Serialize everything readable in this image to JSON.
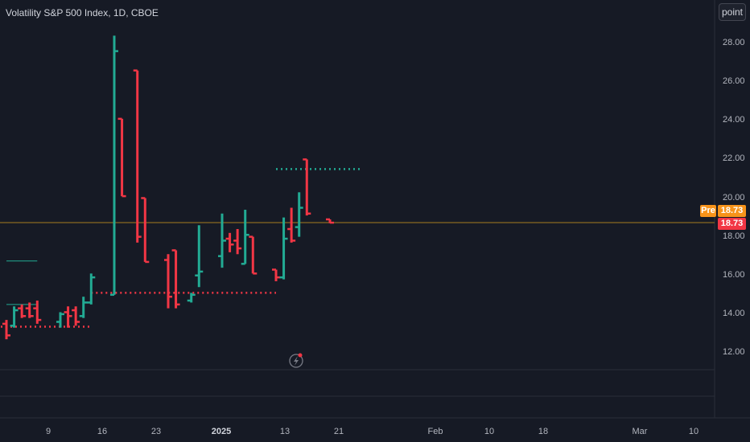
{
  "header": {
    "title": "Volatility S&P 500 Index, 1D, CBOE",
    "point_button": "point"
  },
  "price_tags": {
    "pre_label": "Pre",
    "pre_value": "18.73",
    "last_value": "18.73"
  },
  "colors": {
    "background": "#161a25",
    "up": "#22ab94",
    "down": "#f23645",
    "pre_tag": "#f7931a",
    "last_line": "#a67c1f"
  },
  "chart_data": {
    "type": "ohlc",
    "title": "Volatility S&P 500 Index, 1D, CBOE",
    "ylim": [
      11,
      29.5
    ],
    "y_ticks": [
      "12.00",
      "14.00",
      "16.00",
      "18.00",
      "20.00",
      "22.00",
      "24.00",
      "26.00",
      "28.00"
    ],
    "x_ticks": [
      "9",
      "16",
      "23",
      "2025",
      "13",
      "21",
      "Feb",
      "10",
      "18",
      "Mar",
      "10"
    ],
    "legend": "none",
    "grid": false,
    "last_price": 18.73,
    "bars": [
      {
        "date": "2024-11-29",
        "open": 13.8,
        "high": 13.8,
        "low": 13.3,
        "close": 13.5
      },
      {
        "date": "2024-12-02",
        "open": 13.4,
        "high": 14.0,
        "low": 13.3,
        "close": 13.9
      },
      {
        "date": "2024-12-03",
        "open": 13.7,
        "high": 13.9,
        "low": 13.3,
        "close": 13.5
      },
      {
        "date": "2024-12-04",
        "open": 13.5,
        "high": 13.7,
        "low": 12.9,
        "close": 13.3
      },
      {
        "date": "2024-12-05",
        "open": 13.3,
        "high": 13.8,
        "low": 13.1,
        "close": 13.6
      },
      {
        "date": "2024-12-06",
        "open": 13.6,
        "high": 13.8,
        "low": 13.0,
        "close": 13.4
      },
      {
        "date": "2024-12-09",
        "open": 13.5,
        "high": 13.7,
        "low": 12.7,
        "close": 12.9
      },
      {
        "date": "2024-12-10",
        "open": 13.4,
        "high": 14.4,
        "low": 13.3,
        "close": 14.2
      },
      {
        "date": "2024-12-11",
        "open": 14.3,
        "high": 14.5,
        "low": 13.8,
        "close": 13.9
      },
      {
        "date": "2024-12-12",
        "open": 14.3,
        "high": 14.6,
        "low": 13.8,
        "close": 13.9
      },
      {
        "date": "2024-12-13",
        "open": 14.3,
        "high": 14.7,
        "low": 13.5,
        "close": 13.7
      },
      {
        "date": "2024-12-16",
        "open": 13.6,
        "high": 14.1,
        "low": 13.3,
        "close": 14.0
      },
      {
        "date": "2024-12-17",
        "open": 14.1,
        "high": 14.4,
        "low": 13.3,
        "close": 13.9
      },
      {
        "date": "2024-12-18",
        "open": 14.2,
        "high": 14.4,
        "low": 13.4,
        "close": 13.6
      },
      {
        "date": "2024-12-19",
        "open": 13.9,
        "high": 14.9,
        "low": 13.8,
        "close": 14.6
      },
      {
        "date": "2024-12-20",
        "open": 14.6,
        "high": 16.1,
        "low": 14.5,
        "close": 15.9
      },
      {
        "date": "2024-12-23",
        "open": 15.0,
        "high": 28.4,
        "low": 15.0,
        "close": 27.6
      },
      {
        "date": "2024-12-24",
        "open": 24.1,
        "high": 24.1,
        "low": 20.1,
        "close": 20.1
      },
      {
        "date": "2024-12-26",
        "open": 26.6,
        "high": 26.6,
        "low": 17.7,
        "close": 18.0
      },
      {
        "date": "2024-12-27",
        "open": 20.0,
        "high": 20.0,
        "low": 16.7,
        "close": 16.7
      },
      {
        "date": "2024-12-30",
        "open": 16.8,
        "high": 17.1,
        "low": 14.3,
        "close": 14.9
      },
      {
        "date": "2024-12-31",
        "open": 17.3,
        "high": 17.3,
        "low": 14.3,
        "close": 14.5
      },
      {
        "date": "2025-01-02",
        "open": 14.7,
        "high": 15.1,
        "low": 14.6,
        "close": 15.0
      },
      {
        "date": "2025-01-03",
        "open": 16.0,
        "high": 18.6,
        "low": 15.4,
        "close": 16.2
      },
      {
        "date": "2025-01-06",
        "open": 17.0,
        "high": 19.2,
        "low": 16.4,
        "close": 17.8
      },
      {
        "date": "2025-01-07",
        "open": 17.9,
        "high": 18.2,
        "low": 17.2,
        "close": 17.6
      },
      {
        "date": "2025-01-08",
        "open": 17.8,
        "high": 18.4,
        "low": 17.1,
        "close": 17.4
      },
      {
        "date": "2025-01-09",
        "open": 16.6,
        "high": 19.4,
        "low": 16.6,
        "close": 18.1
      },
      {
        "date": "2025-01-10",
        "open": 18.0,
        "high": 18.0,
        "low": 16.1,
        "close": 16.1
      },
      {
        "date": "2025-01-13",
        "open": 16.3,
        "high": 16.3,
        "low": 15.7,
        "close": 15.9
      },
      {
        "date": "2025-01-14",
        "open": 15.9,
        "high": 19.0,
        "low": 15.8,
        "close": 17.9
      },
      {
        "date": "2025-01-15",
        "open": 18.4,
        "high": 19.5,
        "low": 17.7,
        "close": 17.8
      },
      {
        "date": "2025-01-16",
        "open": 18.5,
        "high": 20.3,
        "low": 18.0,
        "close": 19.5
      },
      {
        "date": "2025-01-17",
        "open": 22.0,
        "high": 22.0,
        "low": 19.1,
        "close": 19.2
      },
      {
        "date": "2025-01-20",
        "open": 18.9,
        "high": 18.9,
        "low": 18.7,
        "close": 18.73
      }
    ],
    "annotations": [
      {
        "type": "dotted-line",
        "color": "#f23645",
        "value": 13.35,
        "from": "2024-12-02",
        "to": "2024-12-20"
      },
      {
        "type": "dotted-line",
        "color": "#f23645",
        "value": 15.1,
        "from": "2024-12-20",
        "to": "2025-01-13"
      },
      {
        "type": "dotted-line",
        "color": "#22ab94",
        "value": 21.5,
        "from": "2025-01-13",
        "to": "2025-01-24"
      },
      {
        "type": "line",
        "color": "#22ab94",
        "value": 16.75,
        "from": "2024-12-09",
        "to": "2024-12-13"
      },
      {
        "type": "line",
        "color": "#22ab94",
        "value": 14.5,
        "from": "2024-12-09",
        "to": "2024-12-13"
      }
    ]
  }
}
